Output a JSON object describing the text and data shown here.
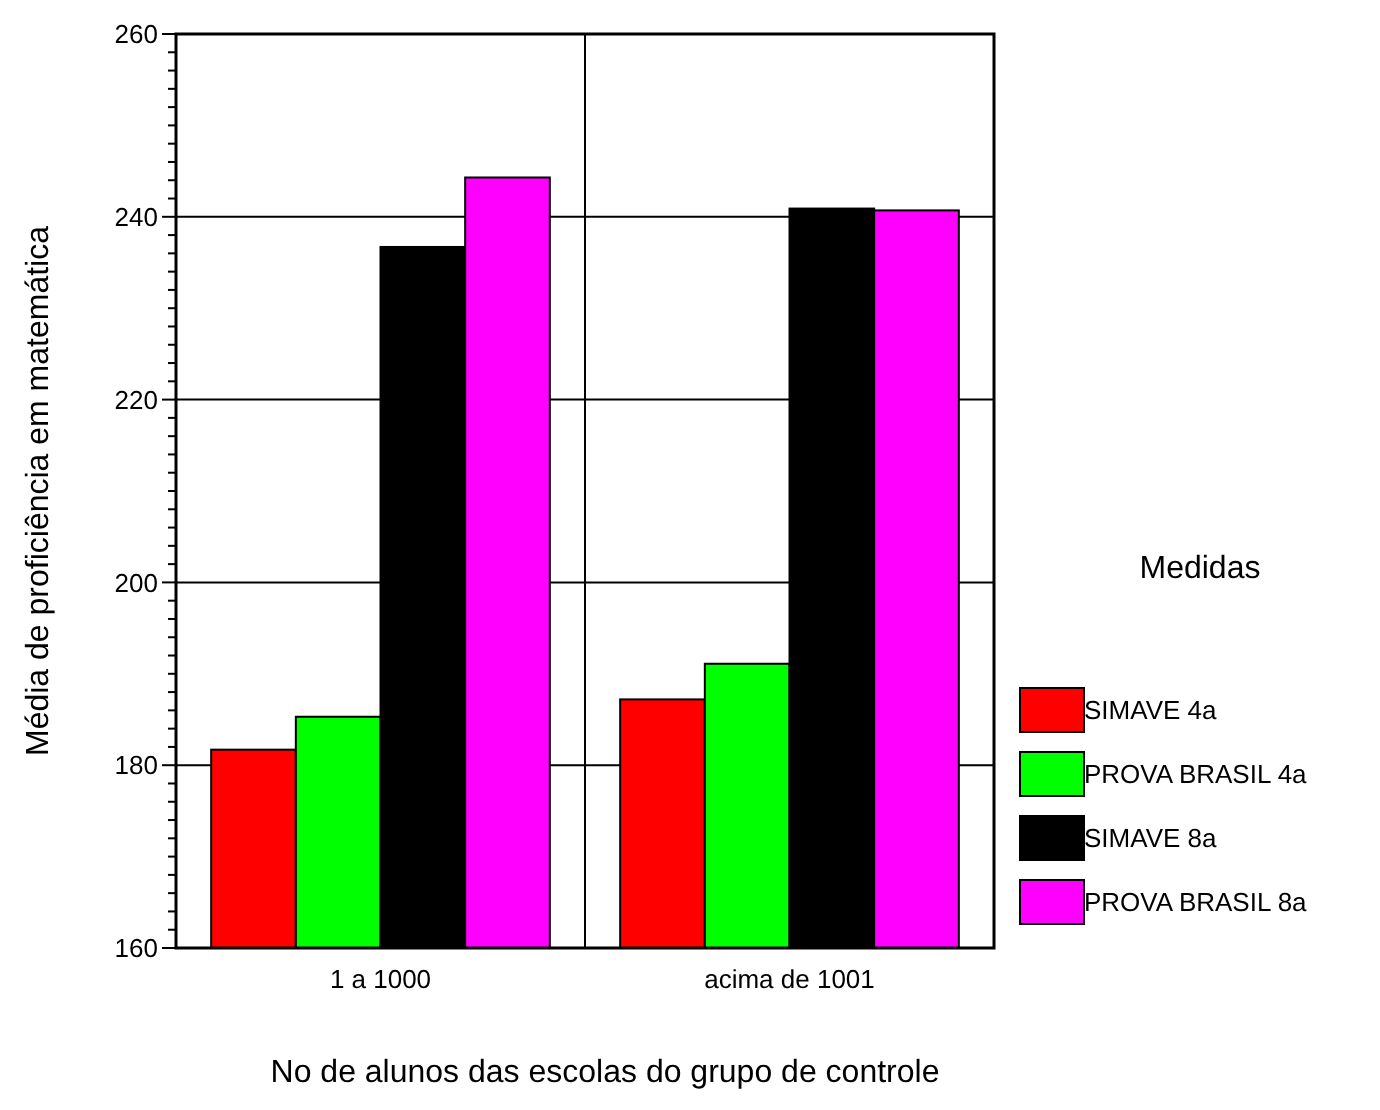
{
  "chart_data": {
    "type": "bar",
    "xlabel": "No de alunos das escolas do grupo de controle",
    "ylabel": "Média de proficiência em matemática",
    "legend_title": "Medidas",
    "categories": [
      "1 a 1000",
      "acima de 1001"
    ],
    "series": [
      {
        "name": "SIMAVE 4a",
        "color": "#ff0000",
        "values": [
          181.7,
          187.2
        ]
      },
      {
        "name": "PROVA BRASIL 4a",
        "color": "#00ff00",
        "values": [
          185.3,
          191.1
        ]
      },
      {
        "name": "SIMAVE 8a",
        "color": "#000000",
        "values": [
          236.7,
          240.9
        ]
      },
      {
        "name": "PROVA BRASIL 8a",
        "color": "#ff00ff",
        "values": [
          244.3,
          240.7
        ]
      }
    ],
    "ylim": [
      160,
      260
    ],
    "yticks": [
      160,
      {
        "value": 162,
        "label": null
      },
      {
        "value": 164,
        "label": null
      },
      {
        "value": 166,
        "label": null
      },
      {
        "value": 168,
        "label": null
      },
      {
        "value": 170,
        "label": null
      },
      {
        "value": 172,
        "label": null
      },
      {
        "value": 174,
        "label": null
      },
      {
        "value": 176,
        "label": null
      },
      {
        "value": 178,
        "label": null
      },
      180,
      {
        "value": 182,
        "label": null
      },
      {
        "value": 184,
        "label": null
      },
      {
        "value": 186,
        "label": null
      },
      {
        "value": 188,
        "label": null
      },
      {
        "value": 190,
        "label": null
      },
      {
        "value": 192,
        "label": null
      },
      {
        "value": 194,
        "label": null
      },
      {
        "value": 196,
        "label": null
      },
      {
        "value": 198,
        "label": null
      },
      200,
      {
        "value": 202,
        "label": null
      },
      {
        "value": 204,
        "label": null
      },
      {
        "value": 206,
        "label": null
      },
      {
        "value": 208,
        "label": null
      },
      {
        "value": 210,
        "label": null
      },
      {
        "value": 212,
        "label": null
      },
      {
        "value": 214,
        "label": null
      },
      {
        "value": 216,
        "label": null
      },
      {
        "value": 218,
        "label": null
      },
      220,
      {
        "value": 222,
        "label": null
      },
      {
        "value": 224,
        "label": null
      },
      {
        "value": 226,
        "label": null
      },
      {
        "value": 228,
        "label": null
      },
      {
        "value": 230,
        "label": null
      },
      {
        "value": 232,
        "label": null
      },
      {
        "value": 234,
        "label": null
      },
      {
        "value": 236,
        "label": null
      },
      {
        "value": 238,
        "label": null
      },
      240,
      {
        "value": 242,
        "label": null
      },
      {
        "value": 244,
        "label": null
      },
      {
        "value": 246,
        "label": null
      },
      {
        "value": 248,
        "label": null
      },
      {
        "value": 250,
        "label": null
      },
      {
        "value": 252,
        "label": null
      },
      {
        "value": 254,
        "label": null
      },
      {
        "value": 256,
        "label": null
      },
      {
        "value": 258,
        "label": null
      },
      260
    ],
    "grid": true,
    "legend": "right"
  }
}
